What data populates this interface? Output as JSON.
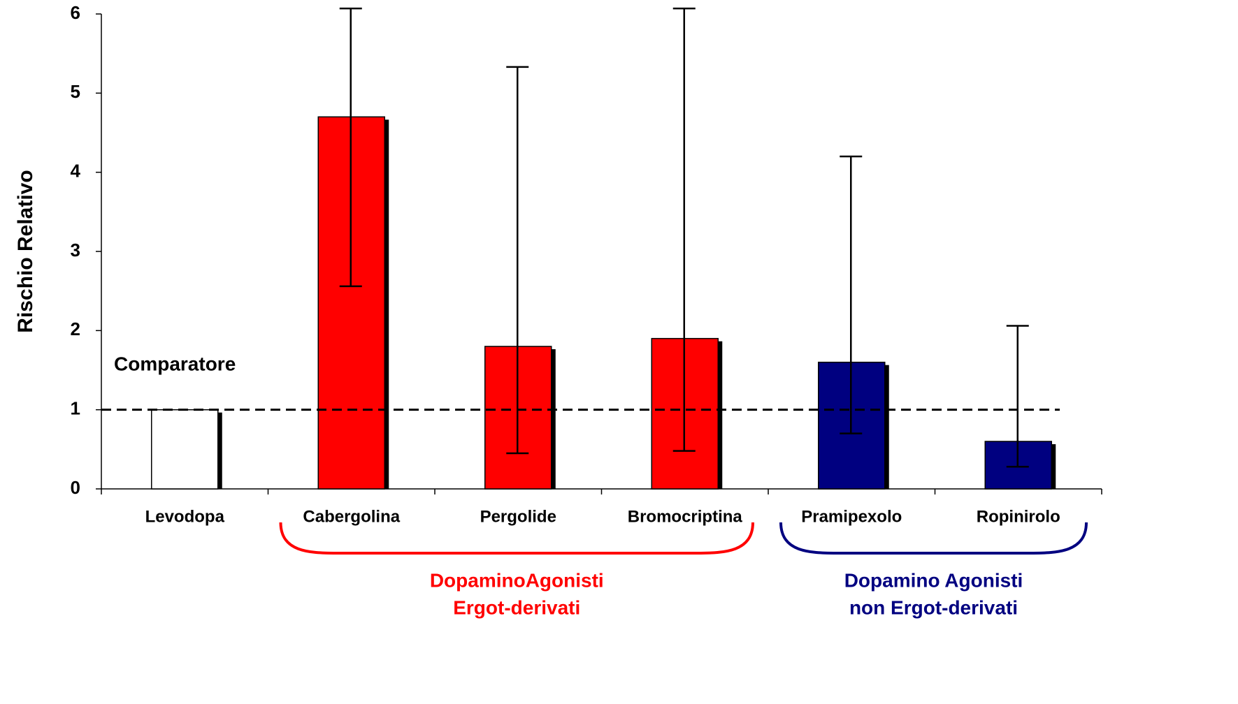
{
  "chart_data": {
    "type": "bar",
    "y_label": "Rischio Relativo",
    "categories": [
      "Levodopa",
      "Cabergolina",
      "Pergolide",
      "Bromocriptina",
      "Pramipexolo",
      "Ropinirolo"
    ],
    "values": [
      1,
      4.7,
      1.8,
      1.9,
      1.6,
      0.6
    ],
    "colors": [
      "#ffffff",
      "#ff0000",
      "#ff0000",
      "#ff0000",
      "#000080",
      "#000080"
    ],
    "error_lower": [
      null,
      2.56,
      0.45,
      0.48,
      0.7,
      0.28
    ],
    "error_upper": [
      null,
      6.07,
      5.33,
      6.07,
      4.2,
      2.06
    ],
    "ylim": [
      0,
      6
    ],
    "yticks": [
      0,
      1,
      2,
      3,
      4,
      5,
      6
    ],
    "reference_line": {
      "value": 1,
      "label": "Comparatore"
    },
    "groups": [
      {
        "lines": [
          "DopaminoAgonisti",
          "Ergot-derivati"
        ],
        "color": "#ff0000",
        "members": [
          "Cabergolina",
          "Pergolide",
          "Bromocriptina"
        ]
      },
      {
        "lines": [
          "Dopamino Agonisti",
          "non Ergot-derivati"
        ],
        "color": "#000080",
        "members": [
          "Pramipexolo",
          "Ropinirolo"
        ]
      }
    ]
  }
}
